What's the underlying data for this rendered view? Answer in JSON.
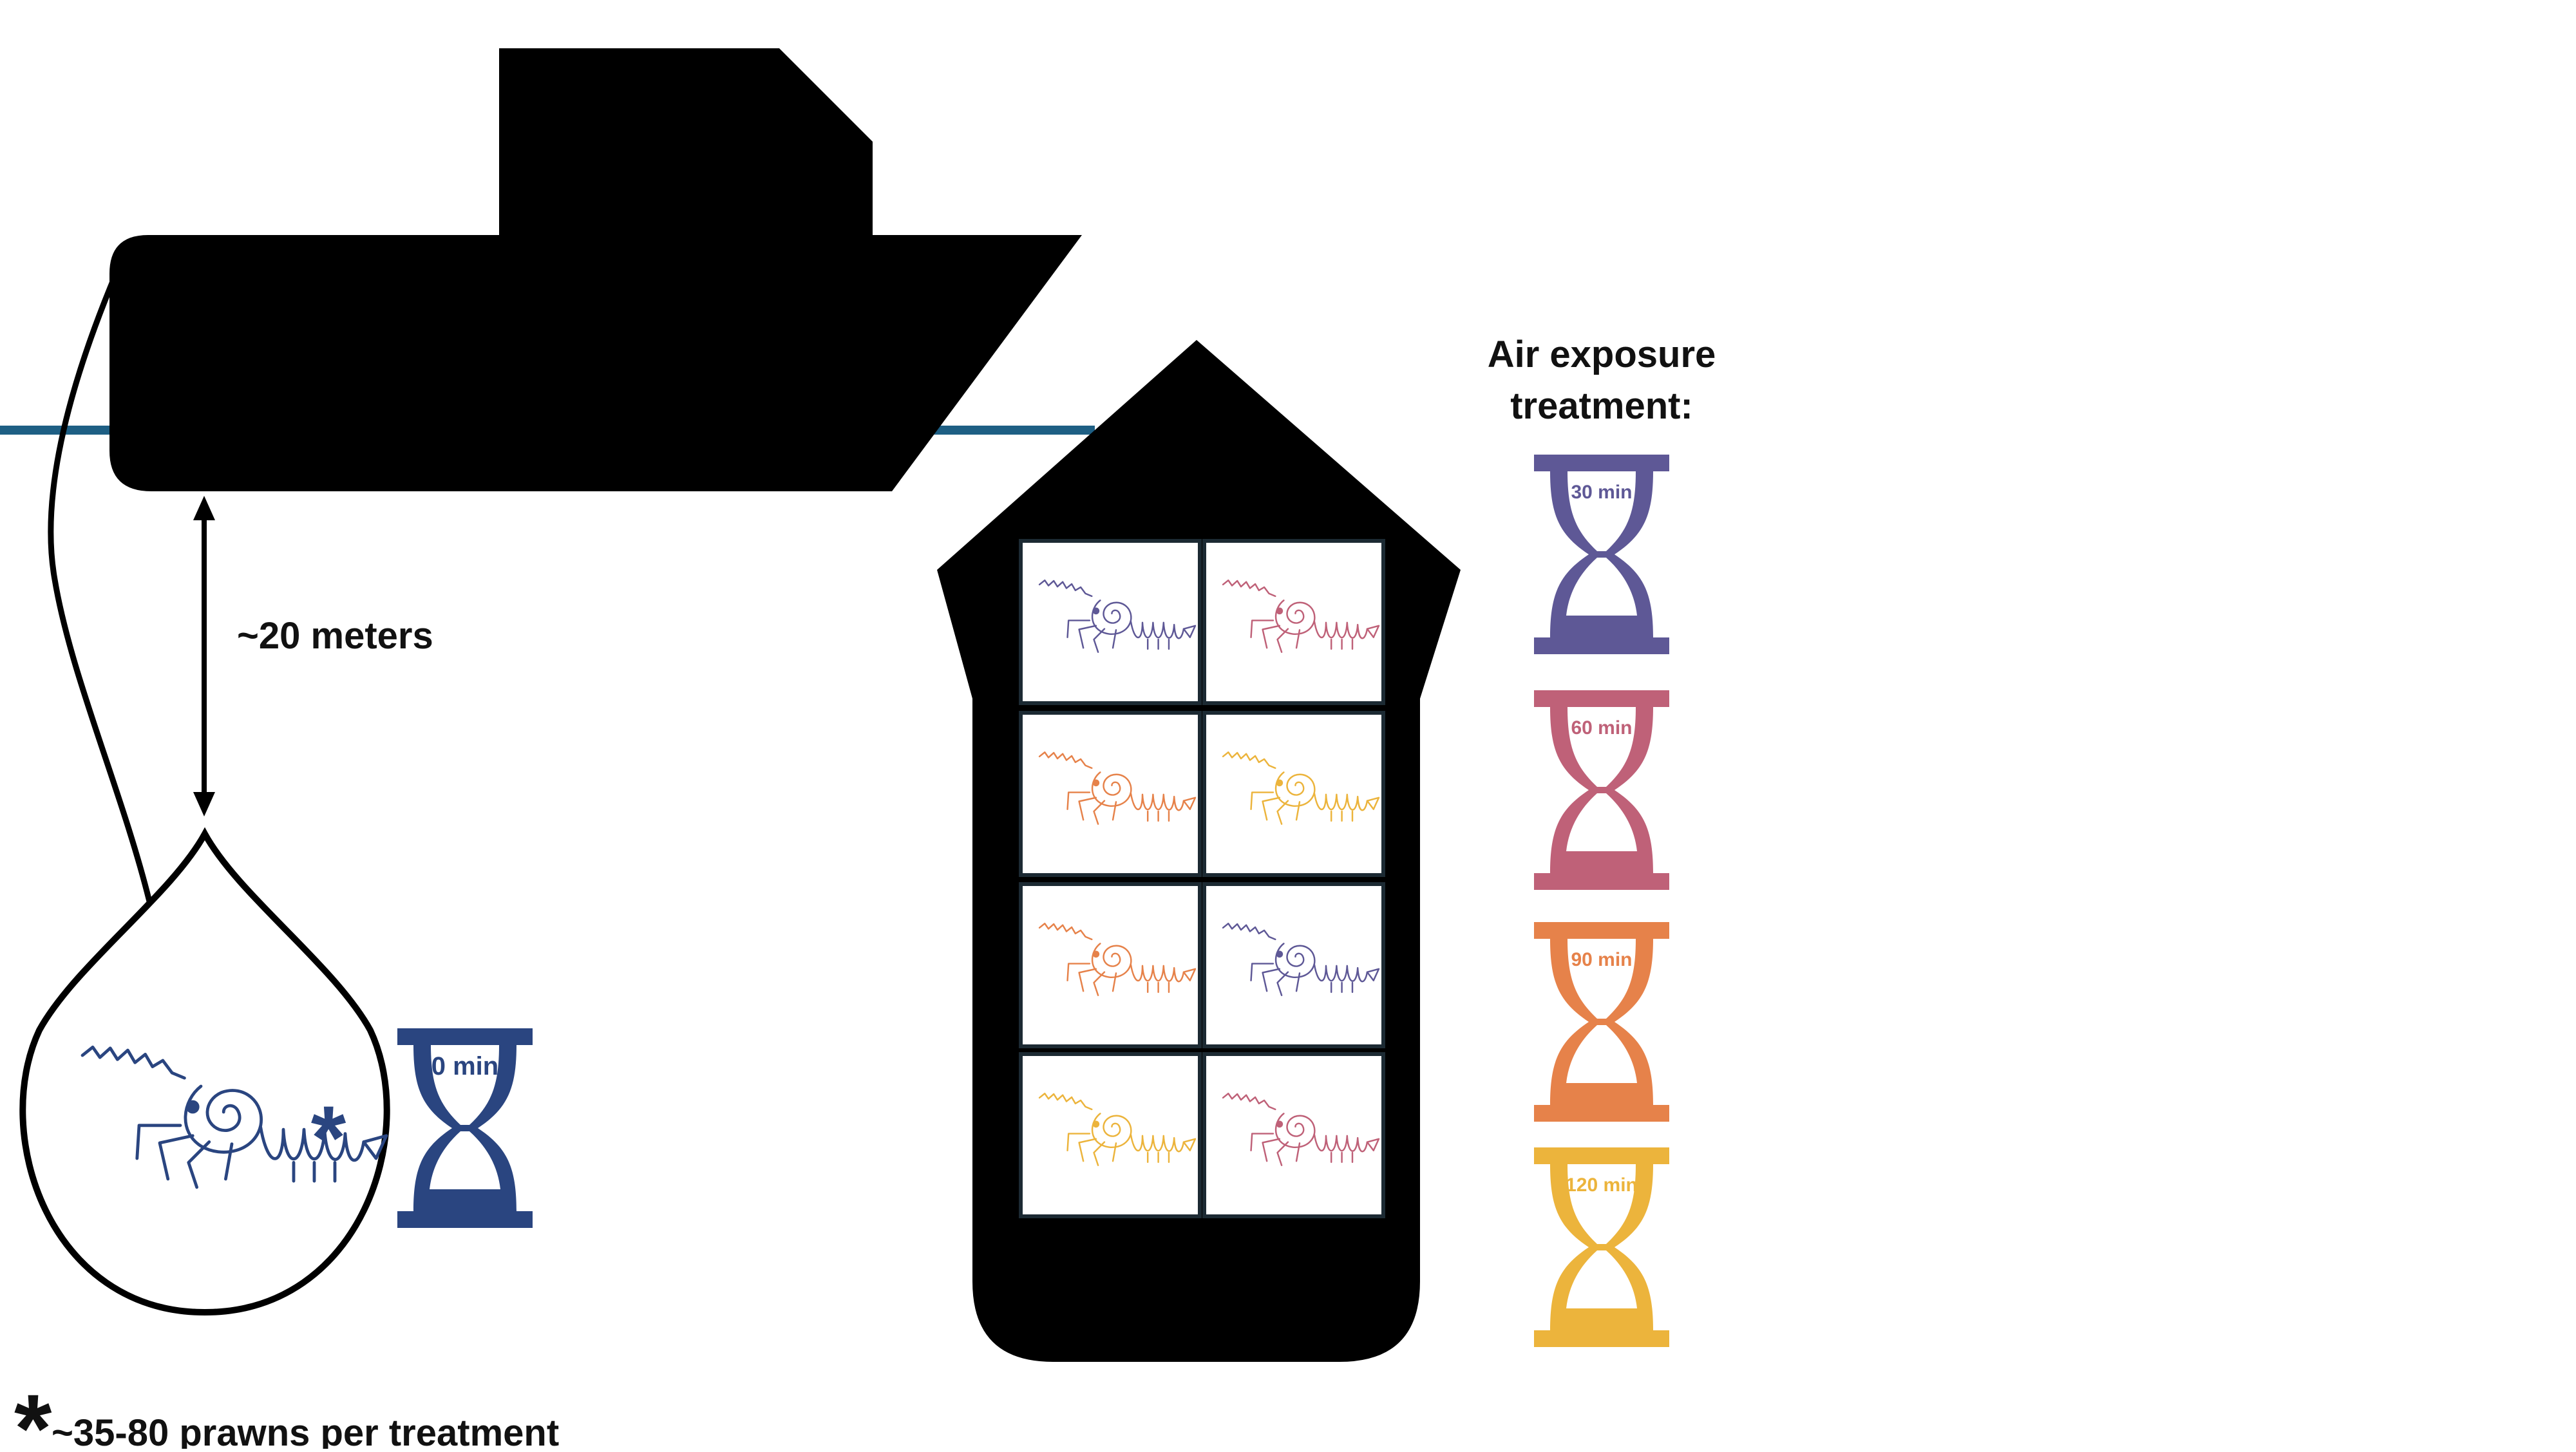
{
  "diagram": {
    "depth_label": "~20 meters",
    "asterisk": "*",
    "footnote": "~35-80 prawns per treatment",
    "treatment_heading_line1": "Air exposure",
    "treatment_heading_line2": "treatment:",
    "control": {
      "label": "0 min",
      "color": "#2a4580"
    },
    "treatments": [
      {
        "label": "30 min",
        "color": "#5e5896"
      },
      {
        "label": "60 min",
        "color": "#bf6178"
      },
      {
        "label": "90 min",
        "color": "#e6824a"
      },
      {
        "label": "120 min",
        "color": "#ecb43c"
      }
    ],
    "cell_colors": [
      "#5e5896",
      "#bf6178",
      "#e6824a",
      "#ecb43c",
      "#e6824a",
      "#5e5896",
      "#ecb43c",
      "#bf6178"
    ],
    "water_color": "#1e5f84",
    "silhouette_color": "#000000"
  }
}
